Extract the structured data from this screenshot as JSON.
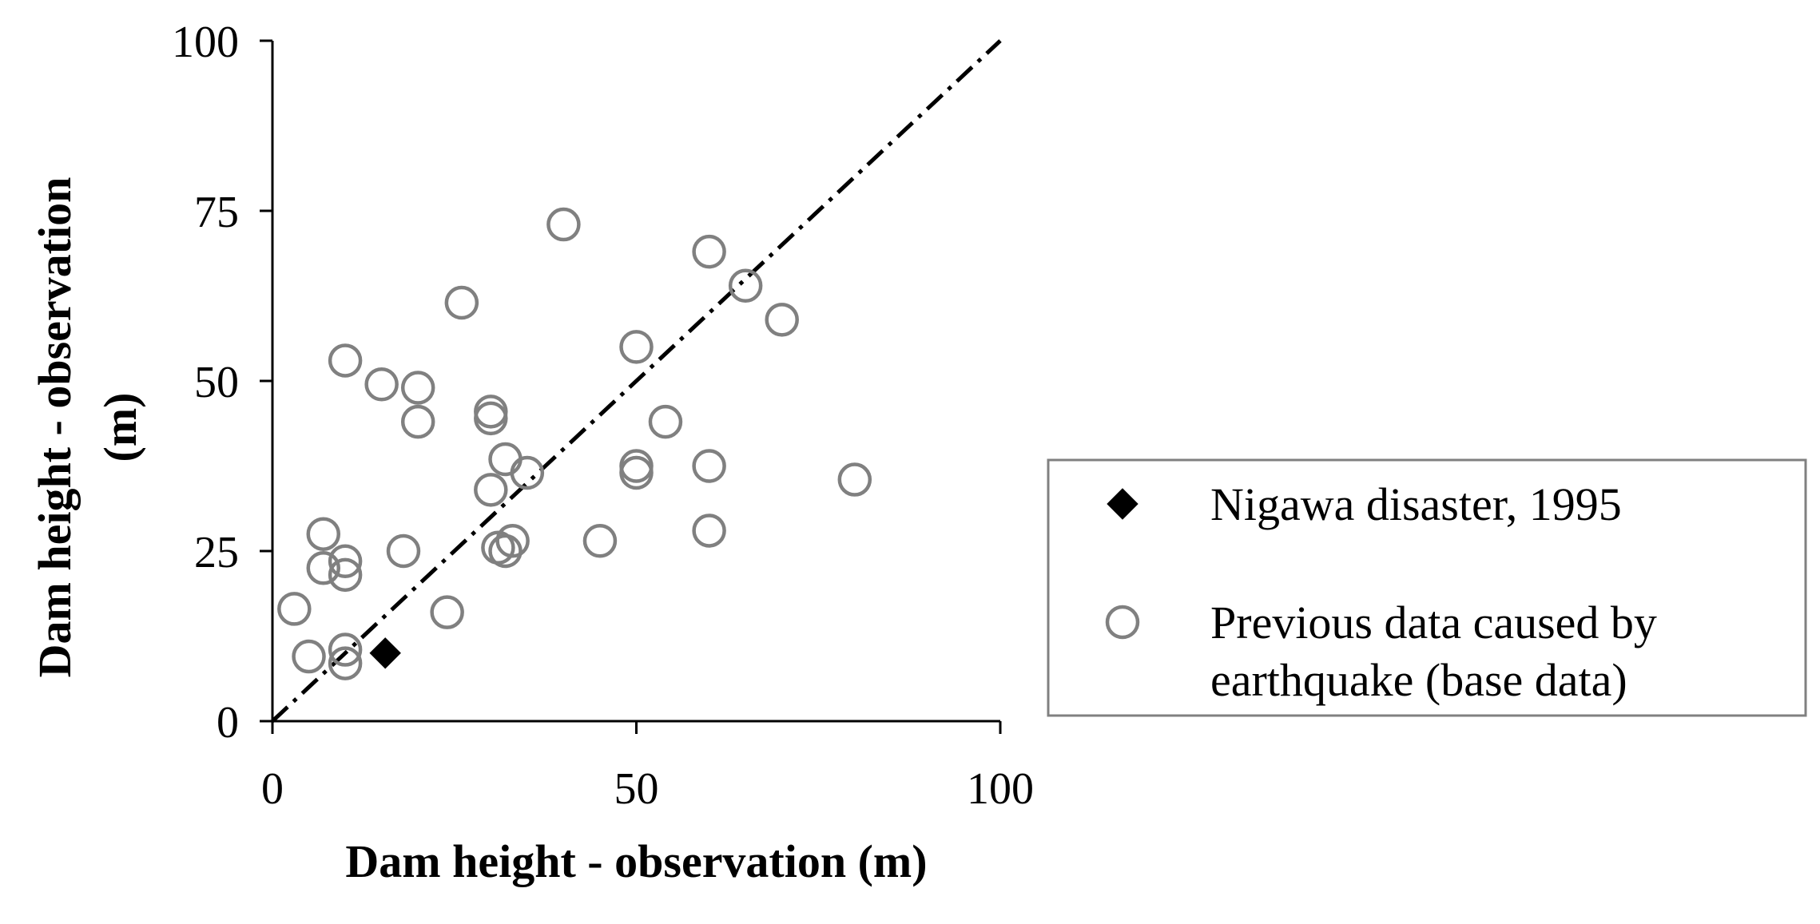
{
  "chart_data": {
    "type": "scatter",
    "xlabel": "Dam height - observation (m)",
    "ylabel_lines": [
      "Dam height - observation",
      "(m)"
    ],
    "xlim": [
      0,
      100
    ],
    "ylim": [
      0,
      100
    ],
    "x_ticks": [
      0,
      50,
      100
    ],
    "x_tick_labels": [
      "0",
      "50",
      "100"
    ],
    "y_ticks": [
      0,
      25,
      50,
      75,
      100
    ],
    "y_tick_labels": [
      "0",
      "25",
      "50",
      "75",
      "100"
    ],
    "grid": false,
    "reference_line": {
      "style": "dash-dot",
      "from": [
        0,
        0
      ],
      "to": [
        100,
        100
      ]
    },
    "legend_position": "right",
    "series": [
      {
        "name": "Nigawa disaster, 1995",
        "legend_lines": [
          "Nigawa disaster, 1995"
        ],
        "marker": "diamond-filled",
        "color": "#000000",
        "points": [
          [
            15.5,
            10
          ]
        ]
      },
      {
        "name": "Previous data caused by earthquake (base data)",
        "legend_lines": [
          "Previous data caused by",
          "earthquake (base data)"
        ],
        "marker": "circle-open",
        "color": "#808080",
        "points": [
          [
            3,
            16.5
          ],
          [
            5,
            9.5
          ],
          [
            7,
            27.5
          ],
          [
            7,
            22.5
          ],
          [
            10,
            23.5
          ],
          [
            10,
            21.5
          ],
          [
            10,
            10.5
          ],
          [
            10,
            8.5
          ],
          [
            10,
            53
          ],
          [
            15,
            49.5
          ],
          [
            18,
            25
          ],
          [
            20,
            49
          ],
          [
            20,
            44
          ],
          [
            24,
            16
          ],
          [
            26,
            61.5
          ],
          [
            30,
            45.5
          ],
          [
            30,
            44.5
          ],
          [
            30,
            34
          ],
          [
            31,
            25.5
          ],
          [
            32,
            38.5
          ],
          [
            32,
            25
          ],
          [
            33,
            26.5
          ],
          [
            35,
            36.5
          ],
          [
            40,
            73
          ],
          [
            45,
            26.5
          ],
          [
            50,
            55
          ],
          [
            50,
            37.5
          ],
          [
            50,
            36.5
          ],
          [
            54,
            44
          ],
          [
            60,
            69
          ],
          [
            60,
            37.5
          ],
          [
            60,
            28
          ],
          [
            65,
            64
          ],
          [
            70,
            59
          ],
          [
            80,
            35.5
          ]
        ]
      }
    ]
  }
}
